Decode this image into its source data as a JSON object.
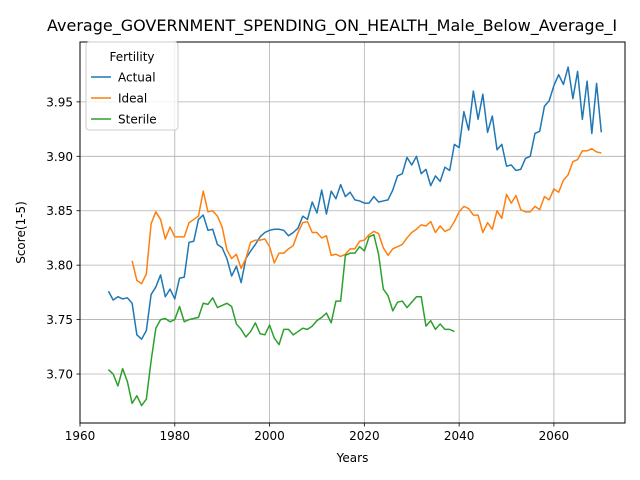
{
  "chart_data": {
    "type": "line",
    "title": "Average_GOVERNMENT_SPENDING_ON_HEALTH_Male_Below_Average_I",
    "xlabel": "Years",
    "ylabel": "Score(1-5)",
    "xlim": [
      1960,
      2075
    ],
    "ylim": [
      3.655,
      4.005
    ],
    "xticks": [
      1960,
      1980,
      2000,
      2020,
      2040,
      2060
    ],
    "yticks": [
      3.7,
      3.75,
      3.8,
      3.85,
      3.9,
      3.95
    ],
    "ytick_labels": [
      "3.70",
      "3.75",
      "3.80",
      "3.85",
      "3.90",
      "3.95"
    ],
    "grid": true,
    "legend": {
      "title": "Fertility",
      "placement": "upper-left"
    },
    "series": [
      {
        "name": "Actual",
        "color": "#1f77b4",
        "x": [
          1966,
          1967,
          1968,
          1969,
          1970,
          1971,
          1972,
          1973,
          1974,
          1975,
          1976,
          1977,
          1978,
          1979,
          1980,
          1981,
          1982,
          1983,
          1984,
          1985,
          1986,
          1987,
          1988,
          1989,
          1990,
          1991,
          1992,
          1993,
          1994,
          1995,
          1996,
          1997,
          1998,
          1999,
          2000,
          2001,
          2002,
          2003,
          2004,
          2005,
          2006,
          2007,
          2008,
          2009,
          2010,
          2011,
          2012,
          2013,
          2014,
          2015,
          2016,
          2017,
          2018,
          2019,
          2020,
          2021,
          2022,
          2023,
          2024,
          2025,
          2026,
          2027,
          2028,
          2029,
          2030,
          2031,
          2032,
          2033,
          2034,
          2035,
          2036,
          2037,
          2038,
          2039,
          2040,
          2041,
          2042,
          2043,
          2044,
          2045,
          2046,
          2047,
          2048,
          2049,
          2050,
          2051,
          2052,
          2053,
          2054,
          2055,
          2056,
          2057,
          2058,
          2059,
          2060,
          2061,
          2062,
          2063,
          2064,
          2065,
          2066,
          2067,
          2068,
          2069,
          2070
        ],
        "values": [
          3.776,
          3.768,
          3.771,
          3.769,
          3.77,
          3.765,
          3.736,
          3.732,
          3.74,
          3.773,
          3.78,
          3.791,
          3.771,
          3.778,
          3.769,
          3.788,
          3.789,
          3.821,
          3.822,
          3.842,
          3.846,
          3.832,
          3.833,
          3.819,
          3.816,
          3.806,
          3.79,
          3.799,
          3.784,
          3.806,
          3.813,
          3.819,
          3.826,
          3.83,
          3.832,
          3.833,
          3.833,
          3.832,
          3.827,
          3.83,
          3.834,
          3.845,
          3.842,
          3.858,
          3.848,
          3.869,
          3.847,
          3.868,
          3.861,
          3.874,
          3.863,
          3.867,
          3.86,
          3.859,
          3.857,
          3.857,
          3.863,
          3.858,
          3.859,
          3.86,
          3.869,
          3.882,
          3.884,
          3.899,
          3.892,
          3.9,
          3.884,
          3.888,
          3.873,
          3.882,
          3.877,
          3.89,
          3.887,
          3.911,
          3.908,
          3.941,
          3.924,
          3.96,
          3.934,
          3.957,
          3.922,
          3.937,
          3.906,
          3.911,
          3.891,
          3.892,
          3.887,
          3.888,
          3.898,
          3.9,
          3.921,
          3.923,
          3.946,
          3.951,
          3.965,
          3.975,
          3.966,
          3.982,
          3.953,
          3.978,
          3.934,
          3.969,
          3.921,
          3.967,
          3.922
        ]
      },
      {
        "name": "Ideal",
        "color": "#ff7f0e",
        "x": [
          1971,
          1972,
          1973,
          1974,
          1975,
          1976,
          1977,
          1978,
          1979,
          1980,
          1981,
          1982,
          1983,
          1984,
          1985,
          1986,
          1987,
          1988,
          1989,
          1990,
          1991,
          1992,
          1993,
          1994,
          1995,
          1996,
          1997,
          1998,
          1999,
          2000,
          2001,
          2002,
          2003,
          2004,
          2005,
          2006,
          2007,
          2008,
          2009,
          2010,
          2011,
          2012,
          2013,
          2014,
          2015,
          2016,
          2017,
          2018,
          2019,
          2020,
          2021,
          2022,
          2023,
          2024,
          2025,
          2026,
          2027,
          2028,
          2029,
          2030,
          2031,
          2032,
          2033,
          2034,
          2035,
          2036,
          2037,
          2038,
          2039,
          2040,
          2041,
          2042,
          2043,
          2044,
          2045,
          2046,
          2047,
          2048,
          2049,
          2050,
          2051,
          2052,
          2053,
          2054,
          2055,
          2056,
          2057,
          2058,
          2059,
          2060,
          2061,
          2062,
          2063,
          2064,
          2065,
          2066,
          2067,
          2068,
          2069,
          2070
        ],
        "values": [
          3.804,
          3.786,
          3.783,
          3.792,
          3.838,
          3.849,
          3.842,
          3.824,
          3.835,
          3.826,
          3.826,
          3.826,
          3.839,
          3.842,
          3.845,
          3.868,
          3.849,
          3.85,
          3.845,
          3.835,
          3.814,
          3.806,
          3.81,
          3.797,
          3.806,
          3.821,
          3.823,
          3.823,
          3.824,
          3.817,
          3.802,
          3.811,
          3.811,
          3.815,
          3.818,
          3.83,
          3.839,
          3.84,
          3.83,
          3.83,
          3.825,
          3.827,
          3.809,
          3.81,
          3.808,
          3.81,
          3.815,
          3.815,
          3.822,
          3.823,
          3.828,
          3.831,
          3.829,
          3.816,
          3.809,
          3.815,
          3.817,
          3.819,
          3.825,
          3.83,
          3.833,
          3.837,
          3.836,
          3.84,
          3.83,
          3.836,
          3.831,
          3.833,
          3.84,
          3.849,
          3.854,
          3.852,
          3.846,
          3.846,
          3.83,
          3.839,
          3.833,
          3.85,
          3.843,
          3.865,
          3.857,
          3.864,
          3.851,
          3.849,
          3.849,
          3.854,
          3.851,
          3.863,
          3.86,
          3.87,
          3.867,
          3.878,
          3.883,
          3.895,
          3.897,
          3.905,
          3.905,
          3.907,
          3.904,
          3.903
        ]
      },
      {
        "name": "Sterile",
        "color": "#2ca02c",
        "x": [
          1966,
          1967,
          1968,
          1969,
          1970,
          1971,
          1972,
          1973,
          1974,
          1975,
          1976,
          1977,
          1978,
          1979,
          1980,
          1981,
          1982,
          1983,
          1984,
          1985,
          1986,
          1987,
          1988,
          1989,
          1990,
          1991,
          1992,
          1993,
          1994,
          1995,
          1996,
          1997,
          1998,
          1999,
          2000,
          2001,
          2002,
          2003,
          2004,
          2005,
          2006,
          2007,
          2008,
          2009,
          2010,
          2011,
          2012,
          2013,
          2014,
          2015,
          2016,
          2017,
          2018,
          2019,
          2020,
          2021,
          2022,
          2023,
          2024,
          2025,
          2026,
          2027,
          2028,
          2029,
          2030,
          2031,
          2032,
          2033,
          2034,
          2035,
          2036,
          2037,
          2038,
          2039
        ],
        "values": [
          3.704,
          3.7,
          3.689,
          3.705,
          3.693,
          3.673,
          3.68,
          3.671,
          3.677,
          3.712,
          3.742,
          3.75,
          3.751,
          3.748,
          3.75,
          3.762,
          3.748,
          3.75,
          3.751,
          3.752,
          3.765,
          3.764,
          3.77,
          3.761,
          3.763,
          3.765,
          3.762,
          3.746,
          3.741,
          3.734,
          3.739,
          3.747,
          3.737,
          3.736,
          3.745,
          3.733,
          3.727,
          3.741,
          3.741,
          3.736,
          3.739,
          3.742,
          3.741,
          3.744,
          3.749,
          3.752,
          3.756,
          3.747,
          3.767,
          3.767,
          3.809,
          3.811,
          3.811,
          3.817,
          3.813,
          3.826,
          3.828,
          3.81,
          3.778,
          3.772,
          3.758,
          3.766,
          3.767,
          3.761,
          3.766,
          3.771,
          3.771,
          3.744,
          3.749,
          3.741,
          3.746,
          3.741,
          3.741,
          3.739
        ]
      }
    ]
  }
}
